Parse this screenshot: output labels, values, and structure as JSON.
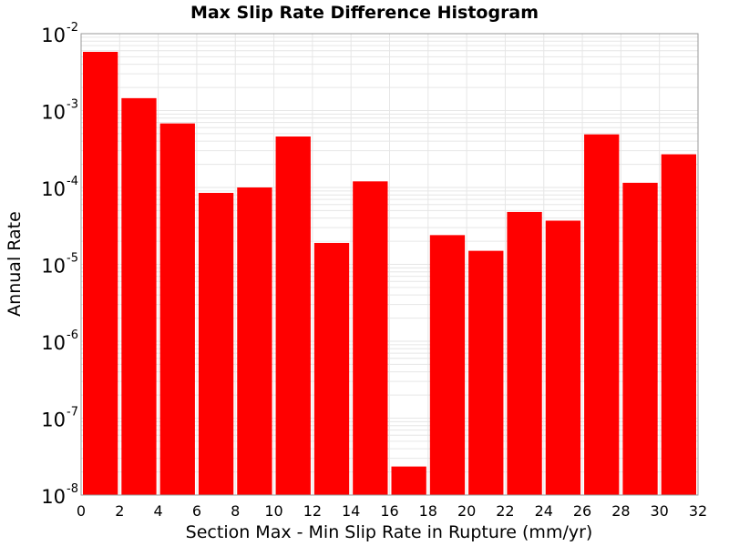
{
  "chart_data": {
    "type": "bar",
    "title": "Max Slip Rate Difference Histogram",
    "xlabel": "Section Max - Min Slip Rate in Rupture (mm/yr)",
    "ylabel": "Annual Rate",
    "bin_width": 2,
    "x": [
      0,
      2,
      4,
      6,
      8,
      10,
      12,
      14,
      16,
      18,
      20,
      22,
      24,
      26,
      28,
      30
    ],
    "values": [
      0.0058,
      0.00145,
      0.00068,
      8.5e-05,
      0.0001,
      0.00046,
      1.9e-05,
      0.00012,
      2.35e-08,
      2.4e-05,
      1.5e-05,
      4.8e-05,
      3.7e-05,
      0.00049,
      0.000115,
      0.00027
    ],
    "xlim": [
      0,
      32
    ],
    "ylim": [
      1e-08,
      0.01
    ],
    "yscale": "log",
    "xticks": [
      "0",
      "2",
      "4",
      "6",
      "8",
      "10",
      "12",
      "14",
      "16",
      "18",
      "20",
      "22",
      "24",
      "26",
      "28",
      "30",
      "32"
    ],
    "yticks": [
      {
        "base": "10",
        "exp": "-2"
      },
      {
        "base": "10",
        "exp": "-3"
      },
      {
        "base": "10",
        "exp": "-4"
      },
      {
        "base": "10",
        "exp": "-5"
      },
      {
        "base": "10",
        "exp": "-6"
      },
      {
        "base": "10",
        "exp": "-7"
      },
      {
        "base": "10",
        "exp": "-8"
      }
    ],
    "bar_color": "#ff0000",
    "grid": true,
    "grid_color": "#e6e6e6"
  }
}
